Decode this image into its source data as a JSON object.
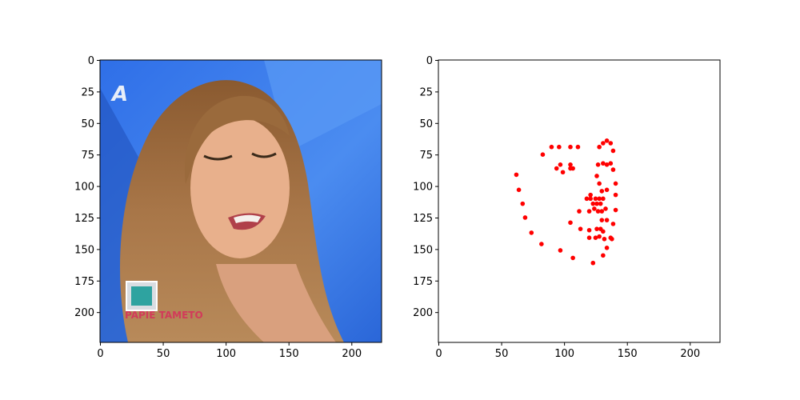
{
  "chart_data": [
    {
      "type": "image",
      "xlim": [
        0,
        224
      ],
      "ylim": [
        224,
        0
      ],
      "x_ticks": [
        0,
        50,
        100,
        150,
        200
      ],
      "y_ticks": [
        0,
        25,
        50,
        75,
        100,
        125,
        150,
        175,
        200
      ],
      "image_content": {
        "scene_name": "tv-show-face-photo",
        "channel_logo_text": "A",
        "caption_text": "PAPIE TAMETO"
      },
      "colors": {
        "background_blue": "#3a78e6",
        "hair": "#9a6a3c",
        "skin": "#e2a884"
      }
    },
    {
      "type": "scatter",
      "xlim": [
        0,
        224
      ],
      "ylim": [
        224,
        0
      ],
      "x_ticks": [
        0,
        50,
        100,
        150,
        200
      ],
      "y_ticks": [
        0,
        25,
        50,
        75,
        100,
        125,
        150,
        175,
        200
      ],
      "marker_color": "#ff0000",
      "points": [
        [
          62,
          91
        ],
        [
          64,
          103
        ],
        [
          67,
          114
        ],
        [
          69,
          125
        ],
        [
          74,
          137
        ],
        [
          82,
          146
        ],
        [
          97,
          151
        ],
        [
          107,
          157
        ],
        [
          123,
          161
        ],
        [
          131,
          155
        ],
        [
          134,
          149
        ],
        [
          137,
          141
        ],
        [
          139,
          130
        ],
        [
          141,
          119
        ],
        [
          141,
          107
        ],
        [
          141,
          98
        ],
        [
          83,
          75
        ],
        [
          90,
          69
        ],
        [
          96,
          69
        ],
        [
          105,
          69
        ],
        [
          111,
          69
        ],
        [
          128,
          69
        ],
        [
          131,
          66
        ],
        [
          134,
          64
        ],
        [
          137,
          66
        ],
        [
          139,
          72
        ],
        [
          121,
          107
        ],
        [
          123,
          114
        ],
        [
          126,
          114
        ],
        [
          129,
          114
        ],
        [
          94,
          86
        ],
        [
          97,
          83
        ],
        [
          99,
          89
        ],
        [
          105,
          86
        ],
        [
          107,
          86
        ],
        [
          105,
          83
        ],
        [
          127,
          83
        ],
        [
          131,
          82
        ],
        [
          134,
          83
        ],
        [
          137,
          82
        ],
        [
          139,
          87
        ],
        [
          112,
          120
        ],
        [
          118,
          110
        ],
        [
          121,
          110
        ],
        [
          125,
          110
        ],
        [
          128,
          110
        ],
        [
          131,
          110
        ],
        [
          126,
          92
        ],
        [
          128,
          98
        ],
        [
          130,
          104
        ],
        [
          134,
          103
        ],
        [
          120,
          120
        ],
        [
          124,
          118
        ],
        [
          127,
          120
        ],
        [
          130,
          120
        ],
        [
          133,
          118
        ],
        [
          130,
          127
        ],
        [
          134,
          127
        ],
        [
          105,
          129
        ],
        [
          113,
          134
        ],
        [
          120,
          135
        ],
        [
          126,
          134
        ],
        [
          129,
          134
        ],
        [
          131,
          136
        ],
        [
          128,
          140
        ],
        [
          125,
          141
        ],
        [
          120,
          141
        ],
        [
          132,
          142
        ],
        [
          138,
          142
        ]
      ]
    }
  ]
}
